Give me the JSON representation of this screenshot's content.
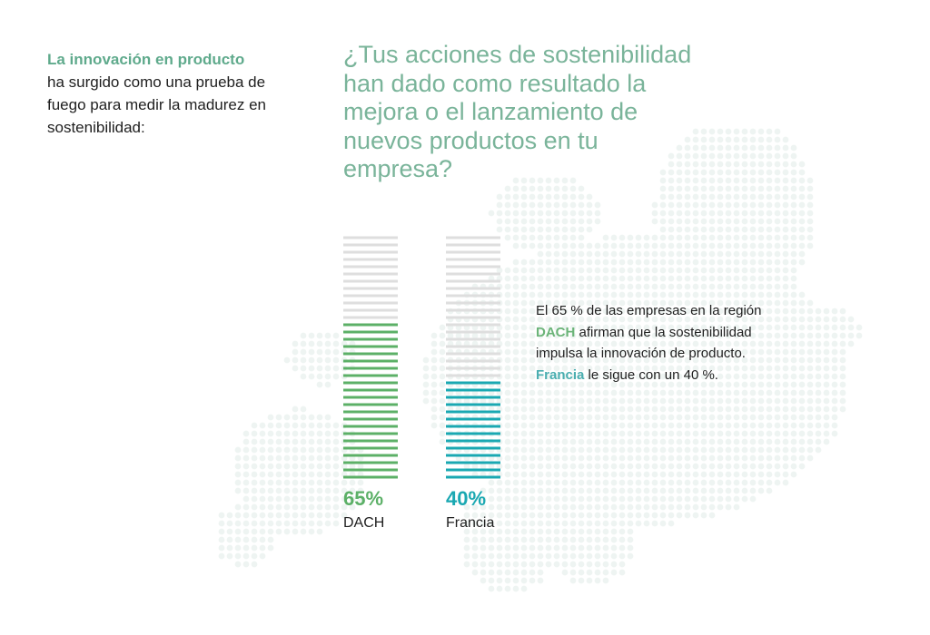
{
  "intro": {
    "highlight": "La innovación en producto",
    "rest": "ha surgido como una prueba de fuego para medir la madurez en sostenibilidad:"
  },
  "question": "¿Tus acciones de sostenibilidad han dado como resultado la mejora o el lanzamiento de nuevos productos en tu empresa?",
  "description": {
    "p1": "El 65 % de las empresas en la región ",
    "dach": "DACH",
    "p2": " afirman que la sostenibilidad impulsa la innovación de producto. ",
    "francia": "Francia",
    "p3": " le sigue con un 40 %."
  },
  "colors": {
    "dach": "#5cb067",
    "francia": "#1aa8b2",
    "empty": "#dedede",
    "map_dots": "#eef4f2",
    "intro_highlight": "#5faa8c",
    "question_text": "#7ab49a"
  },
  "chart_data": {
    "type": "bar",
    "title": "",
    "categories": [
      "DACH",
      "Francia"
    ],
    "values": [
      65,
      40
    ],
    "value_labels": [
      "65%",
      "40%"
    ],
    "ylim": [
      0,
      100
    ],
    "xlabel": "",
    "ylabel": "",
    "grid": false,
    "legend": "none"
  }
}
